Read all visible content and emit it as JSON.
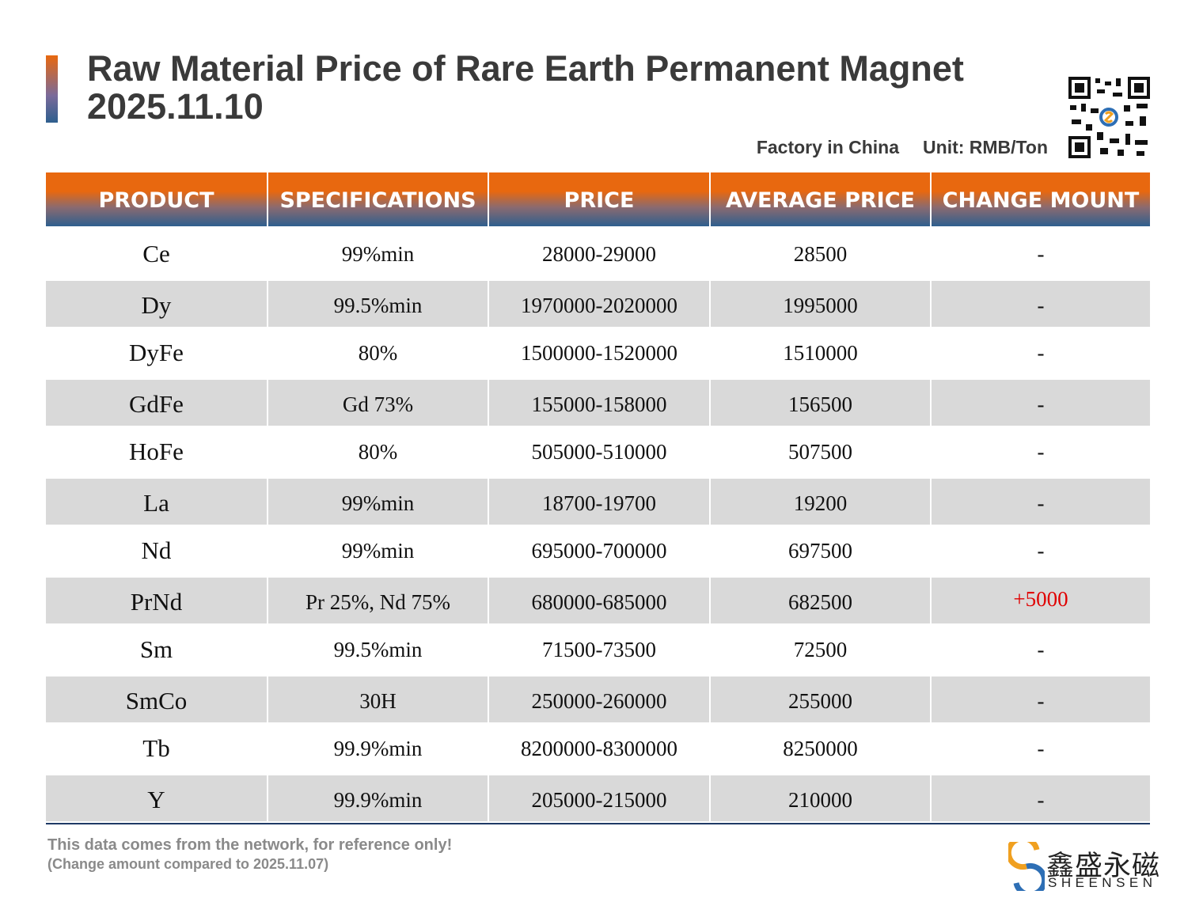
{
  "header": {
    "title": "Raw Material Price of Rare Earth Permanent Magnet",
    "date": "2025.11.10",
    "factory": "Factory in China",
    "unit": "Unit: RMB/Ton"
  },
  "table": {
    "columns": [
      "PRODUCT",
      "SPECIFICATIONS",
      "PRICE",
      "AVERAGE PRICE",
      "CHANGE MOUNT"
    ],
    "rows": [
      [
        "Ce",
        "99%min",
        "28000-29000",
        "28500",
        "-"
      ],
      [
        "Dy",
        "99.5%min",
        "1970000-2020000",
        "1995000",
        "-"
      ],
      [
        "DyFe",
        "80%",
        "1500000-1520000",
        "1510000",
        "-"
      ],
      [
        "GdFe",
        "Gd 73%",
        "155000-158000",
        "156500",
        "-"
      ],
      [
        "HoFe",
        "80%",
        "505000-510000",
        "507500",
        "-"
      ],
      [
        "La",
        "99%min",
        "18700-19700",
        "19200",
        "-"
      ],
      [
        "Nd",
        "99%min",
        "695000-700000",
        "697500",
        "-"
      ],
      [
        "PrNd",
        "Pr 25%, Nd 75%",
        "680000-685000",
        "682500",
        "+5000"
      ],
      [
        "Sm",
        "99.5%min",
        "71500-73500",
        "72500",
        "-"
      ],
      [
        "SmCo",
        "30H",
        "250000-260000",
        "255000",
        "-"
      ],
      [
        "Tb",
        "99.9%min",
        "8200000-8300000",
        "8250000",
        "-"
      ],
      [
        "Y",
        "99.9%min",
        "205000-215000",
        "210000",
        "-"
      ]
    ]
  },
  "footer": {
    "note": "This data comes from the network, for reference only!",
    "compare": "(Change amount compared to 2025.11.07)"
  },
  "logo": {
    "chinese": "鑫盛永磁",
    "english": "SHEENSEN"
  }
}
